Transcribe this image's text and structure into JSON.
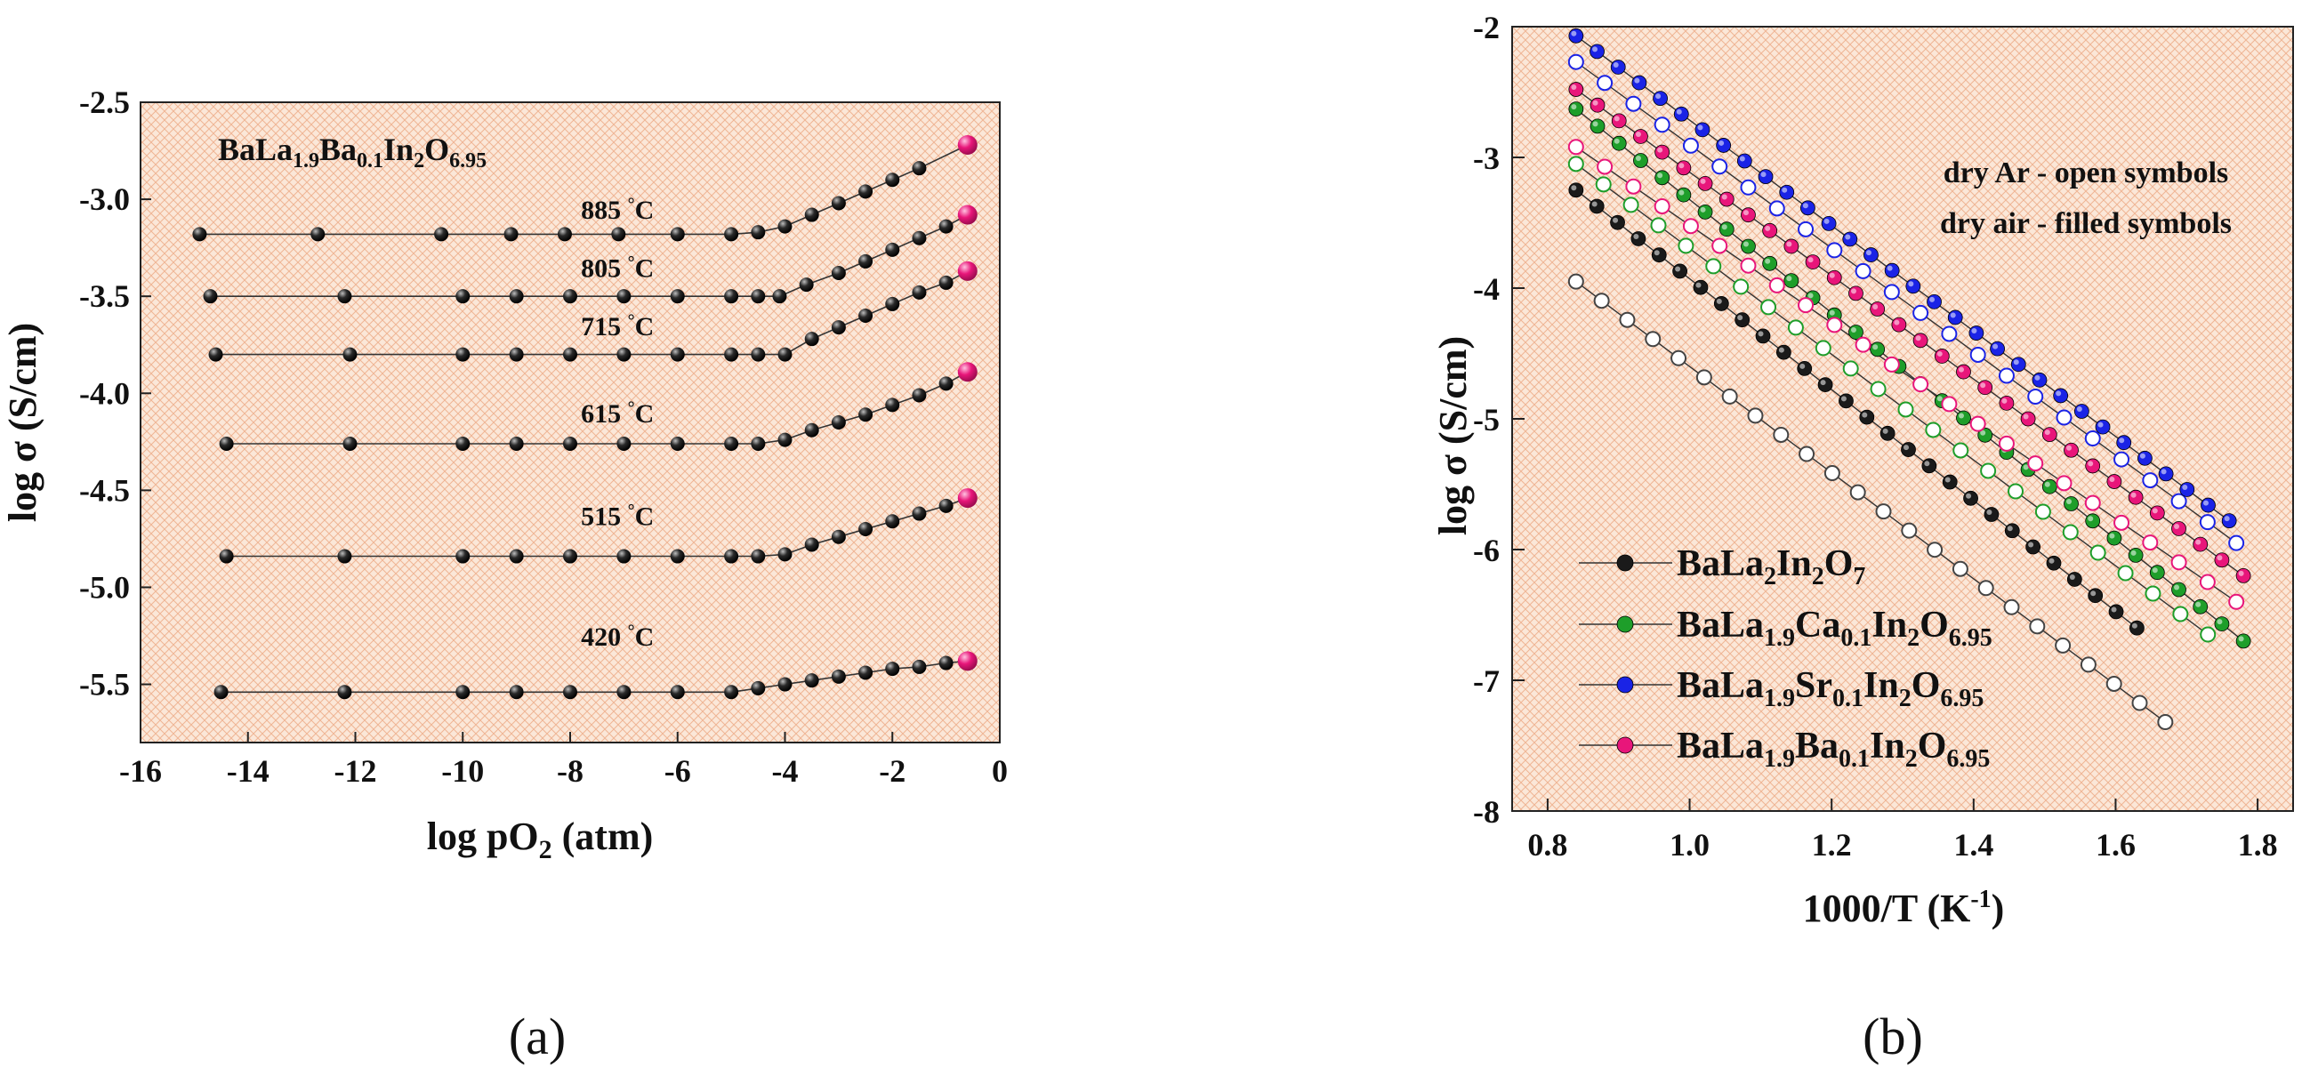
{
  "chart_data": [
    {
      "type": "line",
      "panel_label": "(a)",
      "title": "BaLa1.9Ba0.1In2O6.95",
      "title_parts": [
        "BaLa",
        "1.9",
        "Ba",
        "0.1",
        "In",
        "2",
        "O",
        "6.95"
      ],
      "xlabel": "log pO2 (atm)",
      "xlabel_parts": [
        "log pO",
        "2",
        " (atm)"
      ],
      "ylabel": "log σ (S/cm)",
      "xlim": [
        -16,
        0
      ],
      "ylim": [
        -5.8,
        -2.5
      ],
      "xticks": [
        "-16",
        "-14",
        "-12",
        "-10",
        "-8",
        "-6",
        "-4",
        "-2",
        "0"
      ],
      "yticks": [
        "-5.5",
        "-5.0",
        "-4.5",
        "-4.0",
        "-3.5",
        "-3.0",
        "-2.5"
      ],
      "series": [
        {
          "name": "885 °C",
          "label_x": -7.8,
          "label_y": -3.1,
          "x": [
            -14.9,
            -12.7,
            -10.4,
            -9.1,
            -8.1,
            -7.1,
            -6,
            -5,
            -4.5,
            -4,
            -3.5,
            -3,
            -2.5,
            -2,
            -1.5,
            -0.6
          ],
          "y": [
            -3.18,
            -3.18,
            -3.18,
            -3.18,
            -3.18,
            -3.18,
            -3.18,
            -3.18,
            -3.17,
            -3.14,
            -3.08,
            -3.02,
            -2.96,
            -2.9,
            -2.84,
            -2.72
          ]
        },
        {
          "name": "805 °C",
          "label_x": -7.8,
          "label_y": -3.4,
          "x": [
            -14.7,
            -12.2,
            -10,
            -9,
            -8,
            -7,
            -6,
            -5,
            -4.5,
            -4.1,
            -3.6,
            -3,
            -2.5,
            -2,
            -1.5,
            -1,
            -0.6
          ],
          "y": [
            -3.5,
            -3.5,
            -3.5,
            -3.5,
            -3.5,
            -3.5,
            -3.5,
            -3.5,
            -3.5,
            -3.5,
            -3.44,
            -3.38,
            -3.32,
            -3.26,
            -3.2,
            -3.14,
            -3.08
          ]
        },
        {
          "name": "715 °C",
          "label_x": -7.8,
          "label_y": -3.7,
          "x": [
            -14.6,
            -12.1,
            -10,
            -9,
            -8,
            -7,
            -6,
            -5,
            -4.5,
            -4,
            -3.5,
            -3,
            -2.5,
            -2,
            -1.5,
            -1,
            -0.6
          ],
          "y": [
            -3.8,
            -3.8,
            -3.8,
            -3.8,
            -3.8,
            -3.8,
            -3.8,
            -3.8,
            -3.8,
            -3.8,
            -3.72,
            -3.66,
            -3.6,
            -3.54,
            -3.48,
            -3.43,
            -3.37
          ]
        },
        {
          "name": "615 °C",
          "label_x": -7.8,
          "label_y": -4.15,
          "x": [
            -14.4,
            -12.1,
            -10,
            -9,
            -8,
            -7,
            -6,
            -5,
            -4.5,
            -4,
            -3.5,
            -3,
            -2.5,
            -2,
            -1.5,
            -1,
            -0.6
          ],
          "y": [
            -4.26,
            -4.26,
            -4.26,
            -4.26,
            -4.26,
            -4.26,
            -4.26,
            -4.26,
            -4.26,
            -4.24,
            -4.19,
            -4.15,
            -4.11,
            -4.06,
            -4.01,
            -3.95,
            -3.89
          ]
        },
        {
          "name": "515 °C",
          "label_x": -7.8,
          "label_y": -4.68,
          "x": [
            -14.4,
            -12.2,
            -10,
            -9,
            -8,
            -7,
            -6,
            -5,
            -4.5,
            -4,
            -3.5,
            -3,
            -2.5,
            -2,
            -1.5,
            -1,
            -0.6
          ],
          "y": [
            -4.84,
            -4.84,
            -4.84,
            -4.84,
            -4.84,
            -4.84,
            -4.84,
            -4.84,
            -4.84,
            -4.83,
            -4.78,
            -4.74,
            -4.7,
            -4.66,
            -4.62,
            -4.58,
            -4.54
          ]
        },
        {
          "name": "420 °C",
          "label_x": -7.8,
          "label_y": -5.3,
          "x": [
            -14.5,
            -12.2,
            -10,
            -9,
            -8,
            -7,
            -6,
            -5,
            -4.5,
            -4,
            -3.5,
            -3,
            -2.5,
            -2,
            -1.5,
            -1,
            -0.6
          ],
          "y": [
            -5.54,
            -5.54,
            -5.54,
            -5.54,
            -5.54,
            -5.54,
            -5.54,
            -5.54,
            -5.52,
            -5.5,
            -5.48,
            -5.46,
            -5.44,
            -5.42,
            -5.41,
            -5.39,
            -5.38
          ]
        }
      ]
    },
    {
      "type": "line",
      "panel_label": "(b)",
      "xlabel": "1000/T (K-1)",
      "xlabel_parts": [
        "1000/T (K",
        "-1",
        ")"
      ],
      "ylabel": "log σ (S/cm)",
      "xlim": [
        0.75,
        1.85
      ],
      "ylim": [
        -8,
        -2
      ],
      "xticks": [
        "0.8",
        "1.0",
        "1.2",
        "1.4",
        "1.6",
        "1.8"
      ],
      "yticks": [
        "-8",
        "-7",
        "-6",
        "-5",
        "-4",
        "-3",
        "-2"
      ],
      "annotations": [
        "dry Ar - open symbols",
        "dry air - filled symbols"
      ],
      "series": [
        {
          "name": "BaLa2In2O7",
          "legend_parts": [
            "BaLa",
            "2",
            "In",
            "2",
            "O",
            "7"
          ],
          "color": "#1a1a1a",
          "air": {
            "x": [
              0.84,
              1.63
            ],
            "y": [
              -3.25,
              -6.6
            ],
            "n": 28
          },
          "ar": {
            "x": [
              0.84,
              1.67
            ],
            "y": [
              -3.95,
              -7.32
            ],
            "n": 24
          }
        },
        {
          "name": "BaLa1.9Ca0.1In2O6.95",
          "legend_parts": [
            "BaLa",
            "1.9",
            "Ca",
            "0.1",
            "In",
            "2",
            "O",
            "6.95"
          ],
          "color": "#1e9e2a",
          "air": {
            "x": [
              0.84,
              1.78
            ],
            "y": [
              -2.63,
              -6.7
            ],
            "n": 32
          },
          "ar": {
            "x": [
              0.84,
              1.73
            ],
            "y": [
              -3.05,
              -6.65
            ],
            "n": 24
          }
        },
        {
          "name": "BaLa1.9Sr0.1In2O6.95",
          "legend_parts": [
            "BaLa",
            "1.9",
            "Sr",
            "0.1",
            "In",
            "2",
            "O",
            "6.95"
          ],
          "color": "#1a23e6",
          "air": {
            "x": [
              0.84,
              1.76
            ],
            "y": [
              -2.07,
              -5.78
            ],
            "n": 32
          },
          "ar": {
            "x": [
              0.84,
              1.77
            ],
            "y": [
              -2.27,
              -5.95
            ],
            "n": 24
          }
        },
        {
          "name": "BaLa1.9Ba0.1In2O6.95",
          "legend_parts": [
            "BaLa",
            "1.9",
            "Ba",
            "0.1",
            "In",
            "2",
            "O",
            "6.95"
          ],
          "color": "#e8167a",
          "air": {
            "x": [
              0.84,
              1.78
            ],
            "y": [
              -2.48,
              -6.2
            ],
            "n": 32
          },
          "ar": {
            "x": [
              0.84,
              1.77
            ],
            "y": [
              -2.92,
              -6.4
            ],
            "n": 24
          }
        }
      ]
    }
  ]
}
